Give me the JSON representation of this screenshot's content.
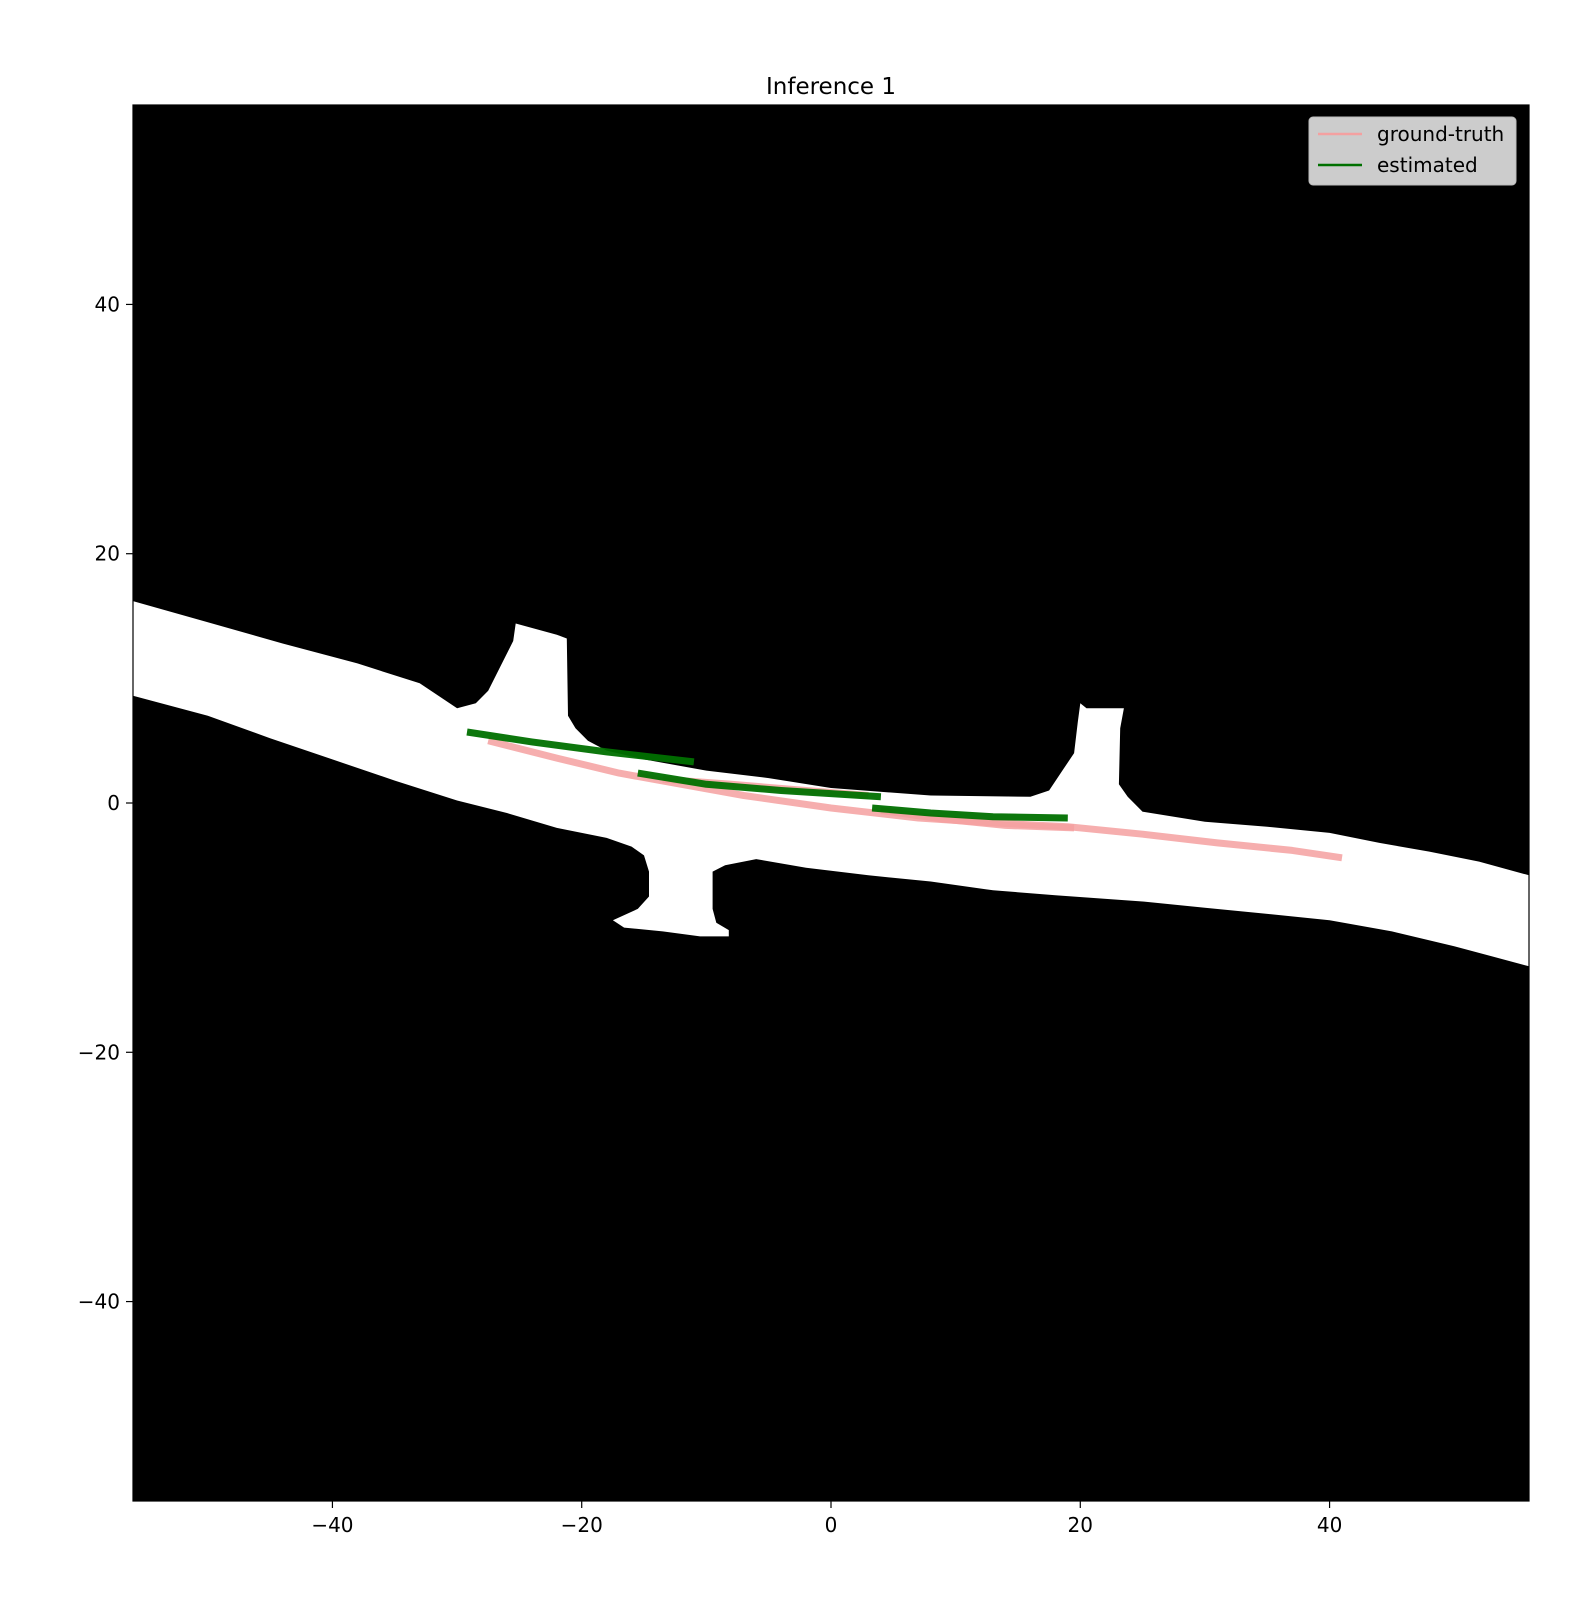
{
  "chart_data": {
    "type": "line",
    "title": "Inference 1",
    "xlabel": "",
    "ylabel": "",
    "xlim": [
      -56,
      56
    ],
    "ylim": [
      -56,
      56
    ],
    "x_ticks": [
      -40,
      -20,
      0,
      20,
      40
    ],
    "y_ticks": [
      40,
      20,
      0,
      -20,
      -40
    ],
    "x_tick_labels": [
      "−40",
      "−20",
      "0",
      "20",
      "40"
    ],
    "y_tick_labels": [
      "40",
      "20",
      "0",
      "−20",
      "−40"
    ],
    "grid": false,
    "legend": {
      "placement": "top-right",
      "entries": [
        {
          "name": "ground-truth",
          "color": "#f4a0a0"
        },
        {
          "name": "estimated",
          "color": "#007000"
        }
      ]
    },
    "background": {
      "description_color_road": "#ffffff",
      "description_color_offroad": "#000000",
      "road_upper_edge": [
        [
          -56,
          16.2
        ],
        [
          -50,
          14.5
        ],
        [
          -44,
          12.8
        ],
        [
          -38,
          11.2
        ],
        [
          -33,
          9.6
        ],
        [
          -30,
          7.6
        ],
        [
          -28.5,
          8.0
        ],
        [
          -27.5,
          9.0
        ],
        [
          -26.5,
          11.0
        ],
        [
          -25.5,
          13.0
        ],
        [
          -25.3,
          14.4
        ],
        [
          -22,
          13.5
        ],
        [
          -21.2,
          13.2
        ],
        [
          -21.1,
          7.0
        ],
        [
          -20.5,
          6.0
        ],
        [
          -19.5,
          5.0
        ],
        [
          -18,
          4.2
        ],
        [
          -15,
          3.5
        ],
        [
          -10,
          2.6
        ],
        [
          -5,
          2.0
        ],
        [
          0,
          1.2
        ],
        [
          8,
          0.6
        ],
        [
          16,
          0.5
        ],
        [
          17.5,
          1.0
        ],
        [
          18.5,
          2.5
        ],
        [
          19.5,
          4.0
        ],
        [
          19.8,
          6.5
        ],
        [
          20.0,
          8.0
        ],
        [
          20.5,
          7.6
        ],
        [
          23.5,
          7.6
        ],
        [
          23.2,
          6.0
        ],
        [
          23.1,
          1.5
        ],
        [
          23.8,
          0.5
        ],
        [
          25,
          -0.7
        ],
        [
          30,
          -1.5
        ],
        [
          35,
          -1.9
        ],
        [
          40,
          -2.4
        ],
        [
          44,
          -3.2
        ],
        [
          48,
          -3.9
        ],
        [
          52,
          -4.7
        ],
        [
          56,
          -5.8
        ]
      ],
      "road_lower_edge": [
        [
          -56,
          8.6
        ],
        [
          -50,
          7.0
        ],
        [
          -45,
          5.2
        ],
        [
          -40,
          3.5
        ],
        [
          -35,
          1.8
        ],
        [
          -30,
          0.2
        ],
        [
          -26,
          -0.8
        ],
        [
          -22,
          -2.0
        ],
        [
          -18,
          -2.8
        ],
        [
          -16,
          -3.5
        ],
        [
          -15,
          -4.2
        ],
        [
          -14.6,
          -5.5
        ],
        [
          -14.6,
          -7.5
        ],
        [
          -15.5,
          -8.5
        ],
        [
          -17.5,
          -9.4
        ],
        [
          -16.6,
          -10.0
        ],
        [
          -13.5,
          -10.3
        ],
        [
          -10.5,
          -10.7
        ],
        [
          -8.2,
          -10.7
        ],
        [
          -8.2,
          -10.2
        ],
        [
          -9.2,
          -9.6
        ],
        [
          -9.5,
          -8.5
        ],
        [
          -9.5,
          -5.5
        ],
        [
          -8.5,
          -5.0
        ],
        [
          -6,
          -4.5
        ],
        [
          -2,
          -5.2
        ],
        [
          3,
          -5.8
        ],
        [
          8,
          -6.3
        ],
        [
          13,
          -7.0
        ],
        [
          18,
          -7.4
        ],
        [
          25,
          -7.9
        ],
        [
          30,
          -8.4
        ],
        [
          35,
          -8.9
        ],
        [
          40,
          -9.4
        ],
        [
          45,
          -10.3
        ],
        [
          50,
          -11.5
        ],
        [
          53,
          -12.3
        ],
        [
          56,
          -13.1
        ]
      ]
    },
    "series": [
      {
        "name": "ground-truth",
        "color": "#f4a0a0",
        "segments": [
          [
            [
              -27.5,
              5.0
            ],
            [
              -22,
              3.6
            ],
            [
              -17,
              2.4
            ],
            [
              -12,
              1.5
            ],
            [
              -7,
              0.6
            ],
            [
              0,
              -0.4
            ],
            [
              7,
              -1.2
            ],
            [
              13,
              -1.6
            ],
            [
              19,
              -1.9
            ],
            [
              25,
              -2.5
            ],
            [
              31,
              -3.2
            ],
            [
              37,
              -3.8
            ],
            [
              41,
              -4.4
            ]
          ],
          [
            [
              -13.5,
              1.9
            ],
            [
              -8,
              1.5
            ],
            [
              -2,
              1.0
            ],
            [
              3,
              0.6
            ]
          ],
          [
            [
              4,
              -0.6
            ],
            [
              9,
              -1.3
            ],
            [
              14,
              -1.8
            ],
            [
              19.5,
              -2.0
            ]
          ]
        ]
      },
      {
        "name": "estimated",
        "color": "#007000",
        "segments": [
          [
            [
              -29.2,
              5.7
            ],
            [
              -24,
              4.9
            ],
            [
              -18,
              4.1
            ],
            [
              -11,
              3.3
            ]
          ],
          [
            [
              -15.5,
              2.4
            ],
            [
              -10,
              1.5
            ],
            [
              -4,
              1.0
            ],
            [
              4,
              0.5
            ]
          ],
          [
            [
              3.3,
              -0.4
            ],
            [
              8,
              -0.8
            ],
            [
              13,
              -1.1
            ],
            [
              19,
              -1.2
            ]
          ]
        ]
      }
    ]
  }
}
